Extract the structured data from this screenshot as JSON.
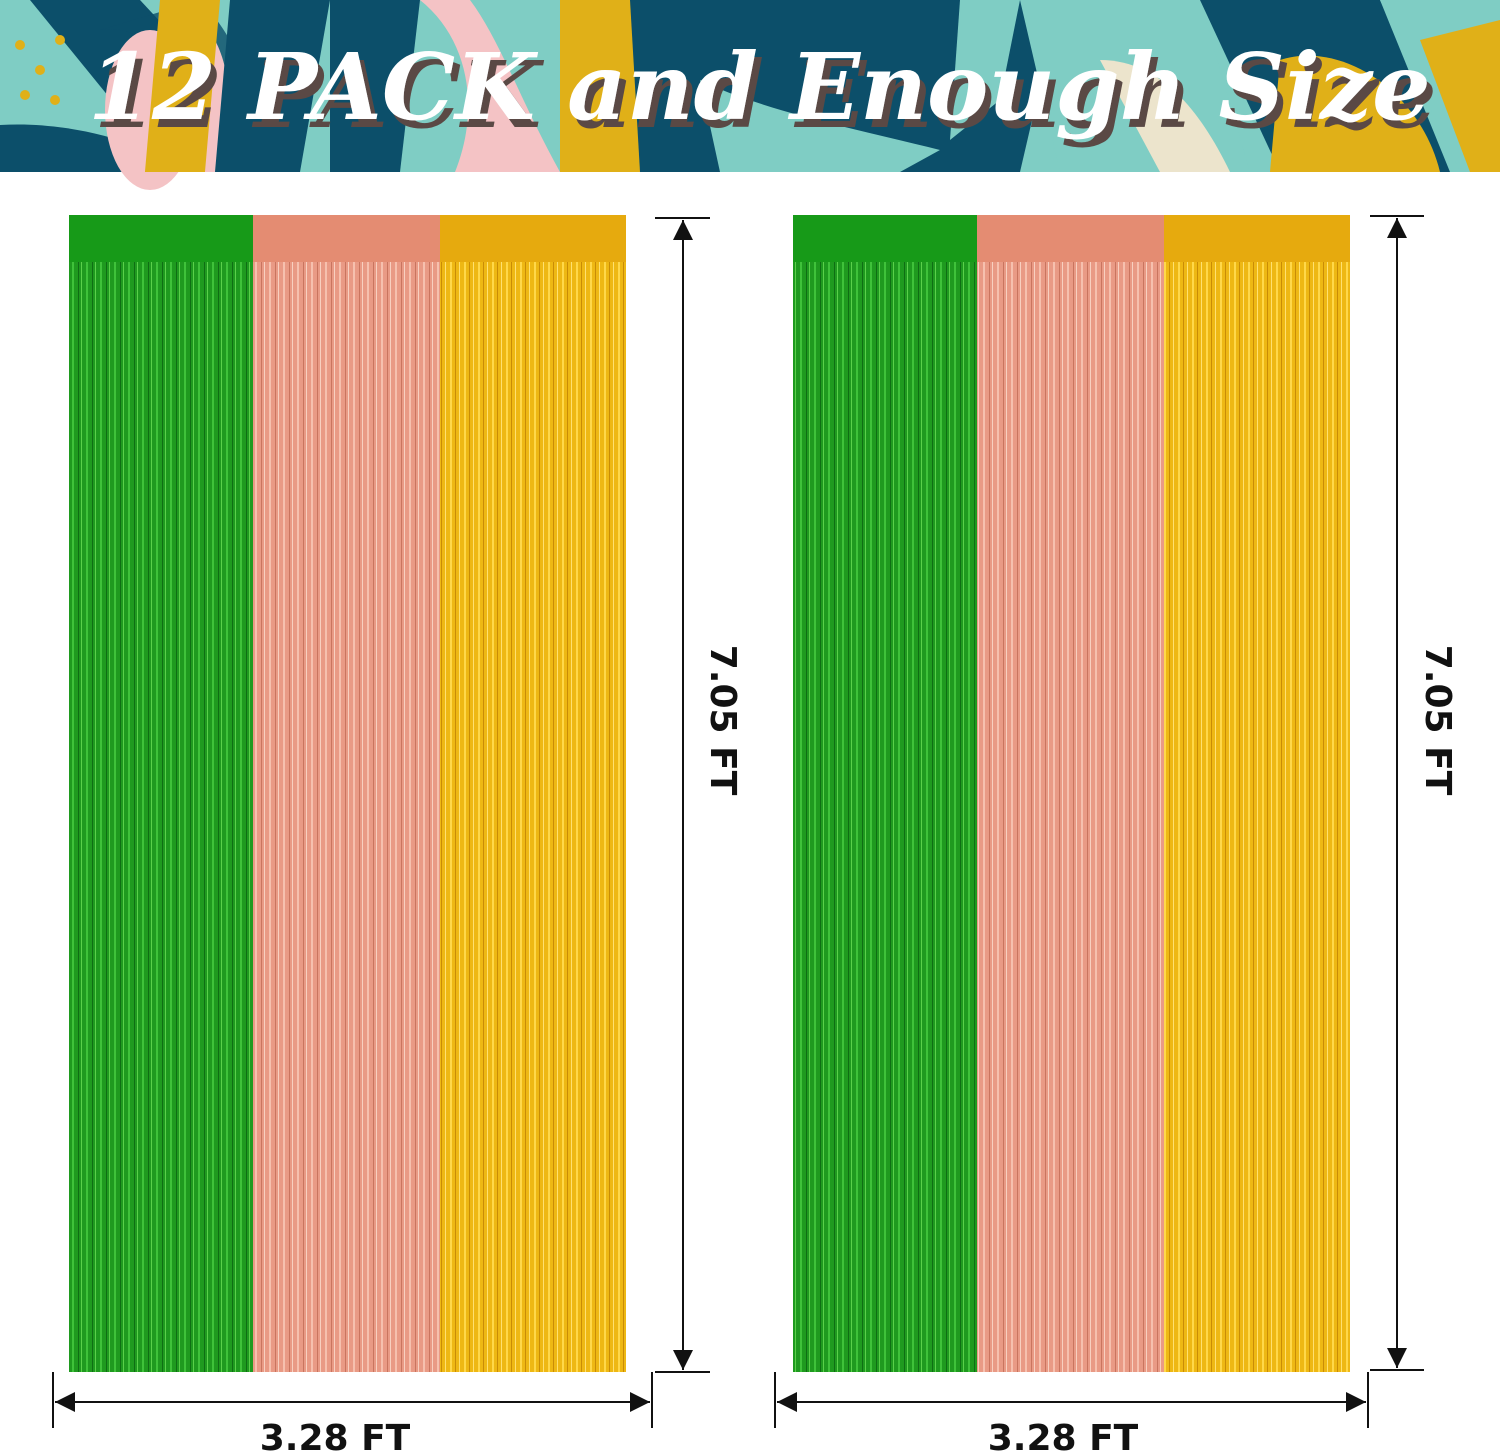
{
  "banner": {
    "title": "12 PACK and Enough Size",
    "colors": {
      "teal": "#7fcdc4",
      "navy": "#0c4f6a",
      "pink": "#f4c3c5",
      "gold": "#e0b018",
      "cream": "#ece4cc"
    }
  },
  "curtains": [
    {
      "strips": [
        {
          "color": "green",
          "hex": "#1f9a1f"
        },
        {
          "color": "rose-gold",
          "hex": "#e99a85"
        },
        {
          "color": "gold",
          "hex": "#eeb814"
        }
      ],
      "height_label": "7.05 FT",
      "width_label": "3.28 FT"
    },
    {
      "strips": [
        {
          "color": "green",
          "hex": "#1f9a1f"
        },
        {
          "color": "rose-gold",
          "hex": "#e99a85"
        },
        {
          "color": "gold",
          "hex": "#eeb814"
        }
      ],
      "height_label": "7.05 FT",
      "width_label": "3.28 FT"
    }
  ]
}
